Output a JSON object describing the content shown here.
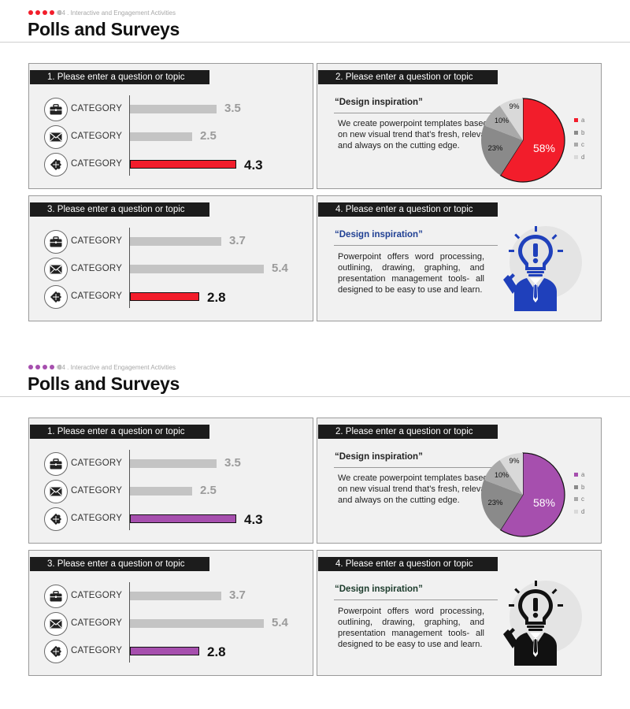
{
  "slides": [
    {
      "accent": "#f21d2b",
      "man_color": "#1f40bb",
      "quote2_color": "#1f3f93",
      "section_label": "04 . Interactive and Engagement Activities",
      "title": "Polls and Surveys",
      "panels": {
        "p1": {
          "header": "1. Please enter a question or topic",
          "rows": [
            {
              "label": "CATEGORY",
              "value": "3.5"
            },
            {
              "label": "CATEGORY",
              "value": "2.5"
            },
            {
              "label": "CATEGORY",
              "value": "4.3"
            }
          ]
        },
        "p2": {
          "header": "2. Please enter a question or topic",
          "quote_title": "“Design inspiration”",
          "quote_body": "We create powerpoint templates based on new visual trend that’s fresh, relevant and always on the cutting edge.",
          "pie_labels": [
            "58%",
            "23%",
            "10%",
            "9%"
          ],
          "legend": [
            "a",
            "b",
            "c",
            "d"
          ]
        },
        "p3": {
          "header": "3. Please enter a question or topic",
          "rows": [
            {
              "label": "CATEGORY",
              "value": "3.7"
            },
            {
              "label": "CATEGORY",
              "value": "5.4"
            },
            {
              "label": "CATEGORY",
              "value": "2.8"
            }
          ]
        },
        "p4": {
          "header": "4. Please enter a question or topic",
          "quote_title": "“Design inspiration”",
          "quote_body": "Powerpoint offers word processing, outlining, drawing, graphing, and presentation management tools- all designed to be easy to use and learn."
        }
      }
    },
    {
      "accent": "#a64fae",
      "man_color": "#111111",
      "quote2_color": "#1a3a2a",
      "section_label": "04 . Interactive and Engagement Activities",
      "title": "Polls and Surveys",
      "panels": {
        "p1": {
          "header": "1. Please enter a question or topic",
          "rows": [
            {
              "label": "CATEGORY",
              "value": "3.5"
            },
            {
              "label": "CATEGORY",
              "value": "2.5"
            },
            {
              "label": "CATEGORY",
              "value": "4.3"
            }
          ]
        },
        "p2": {
          "header": "2. Please enter a question or topic",
          "quote_title": "“Design inspiration”",
          "quote_body": "We create powerpoint templates based on new visual trend that’s fresh, relevant and always on the cutting edge.",
          "pie_labels": [
            "58%",
            "23%",
            "10%",
            "9%"
          ],
          "legend": [
            "a",
            "b",
            "c",
            "d"
          ]
        },
        "p3": {
          "header": "3. Please enter a question or topic",
          "rows": [
            {
              "label": "CATEGORY",
              "value": "3.7"
            },
            {
              "label": "CATEGORY",
              "value": "5.4"
            },
            {
              "label": "CATEGORY",
              "value": "2.8"
            }
          ]
        },
        "p4": {
          "header": "4. Please enter a question or topic",
          "quote_title": "“Design inspiration”",
          "quote_body": "Powerpoint offers word processing, outlining, drawing, graphing, and presentation management tools- all designed to be easy to use and learn."
        }
      }
    }
  ],
  "chart_data": [
    {
      "type": "bar",
      "title": "1. Please enter a question or topic",
      "categories": [
        "CATEGORY",
        "CATEGORY",
        "CATEGORY"
      ],
      "values": [
        3.5,
        2.5,
        4.3
      ],
      "highlight_index": 2
    },
    {
      "type": "pie",
      "title": "2. Please enter a question or topic",
      "categories": [
        "a",
        "b",
        "c",
        "d"
      ],
      "values": [
        58,
        23,
        10,
        9
      ],
      "labels": [
        "58%",
        "23%",
        "10%",
        "9%"
      ]
    },
    {
      "type": "bar",
      "title": "3. Please enter a question or topic",
      "categories": [
        "CATEGORY",
        "CATEGORY",
        "CATEGORY"
      ],
      "values": [
        3.7,
        5.4,
        2.8
      ],
      "highlight_index": 2
    }
  ]
}
